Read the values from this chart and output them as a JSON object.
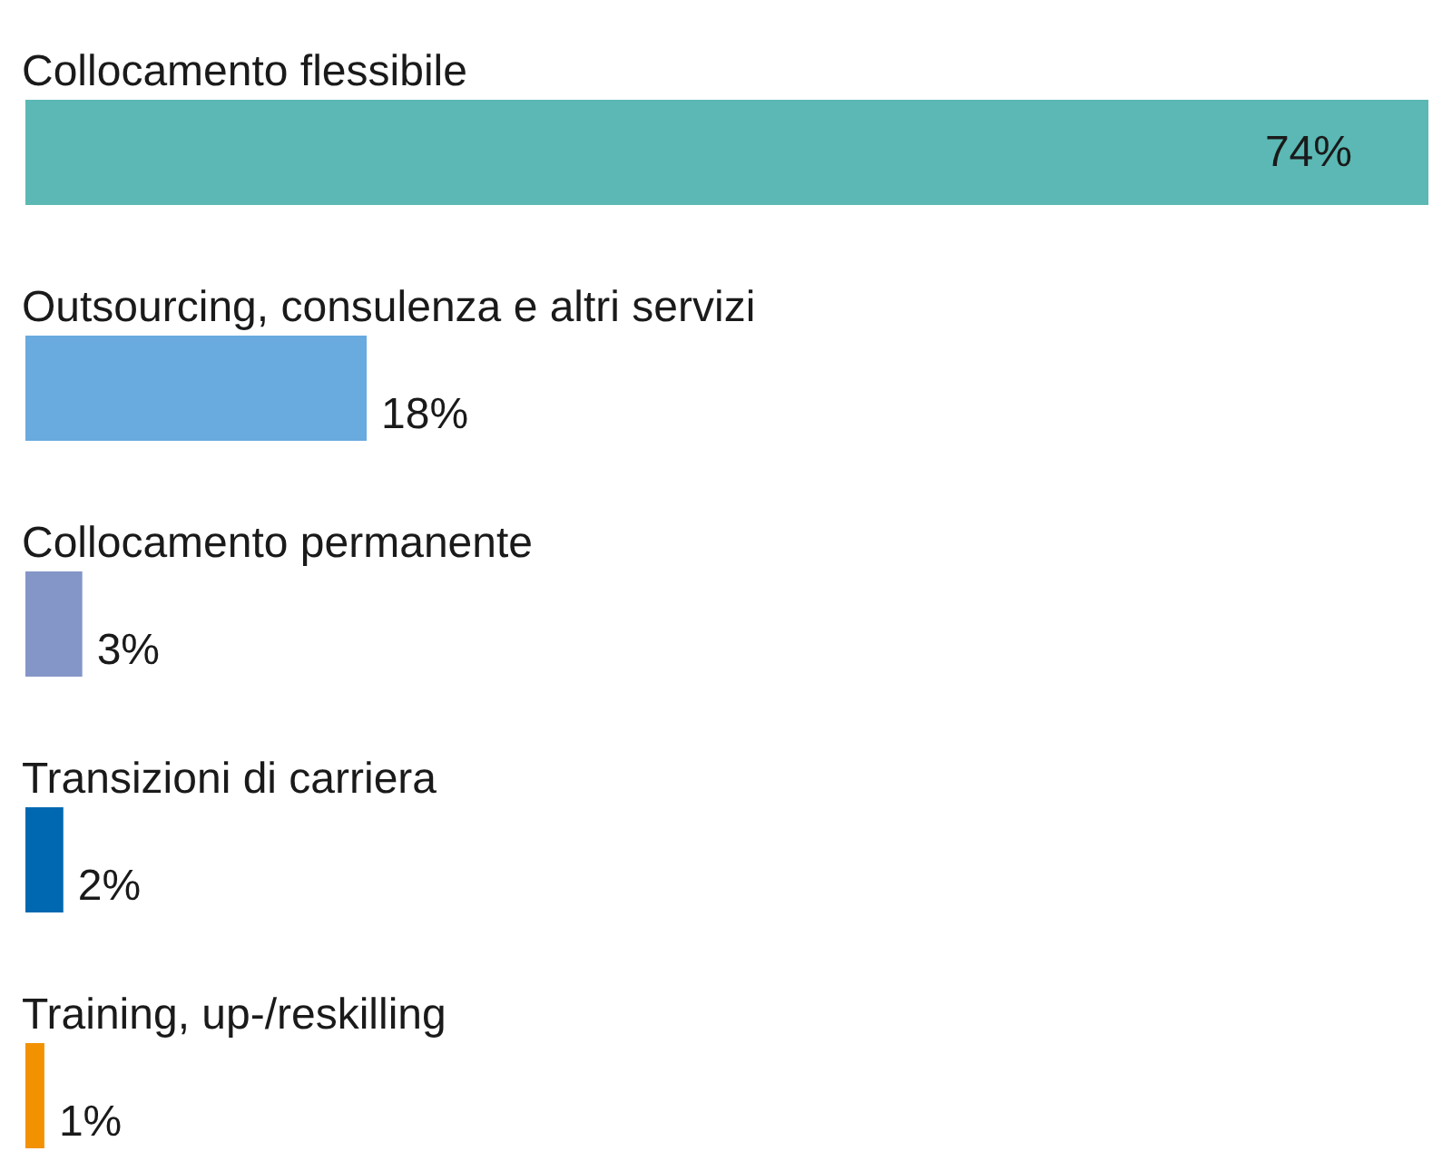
{
  "chart_data": {
    "type": "bar",
    "orientation": "horizontal",
    "categories": [
      "Collocamento flessibile",
      "Outsourcing, consulenza e altri servizi",
      "Collocamento permanente",
      "Transizioni di carriera",
      "Training, up-/reskilling"
    ],
    "values": [
      74,
      18,
      3,
      2,
      1
    ],
    "value_labels": [
      "74%",
      "18%",
      "3%",
      "2%",
      "1%"
    ],
    "colors": [
      "#5bb8b4",
      "#69aadf",
      "#8496c8",
      "#0068b0",
      "#f39200"
    ]
  }
}
